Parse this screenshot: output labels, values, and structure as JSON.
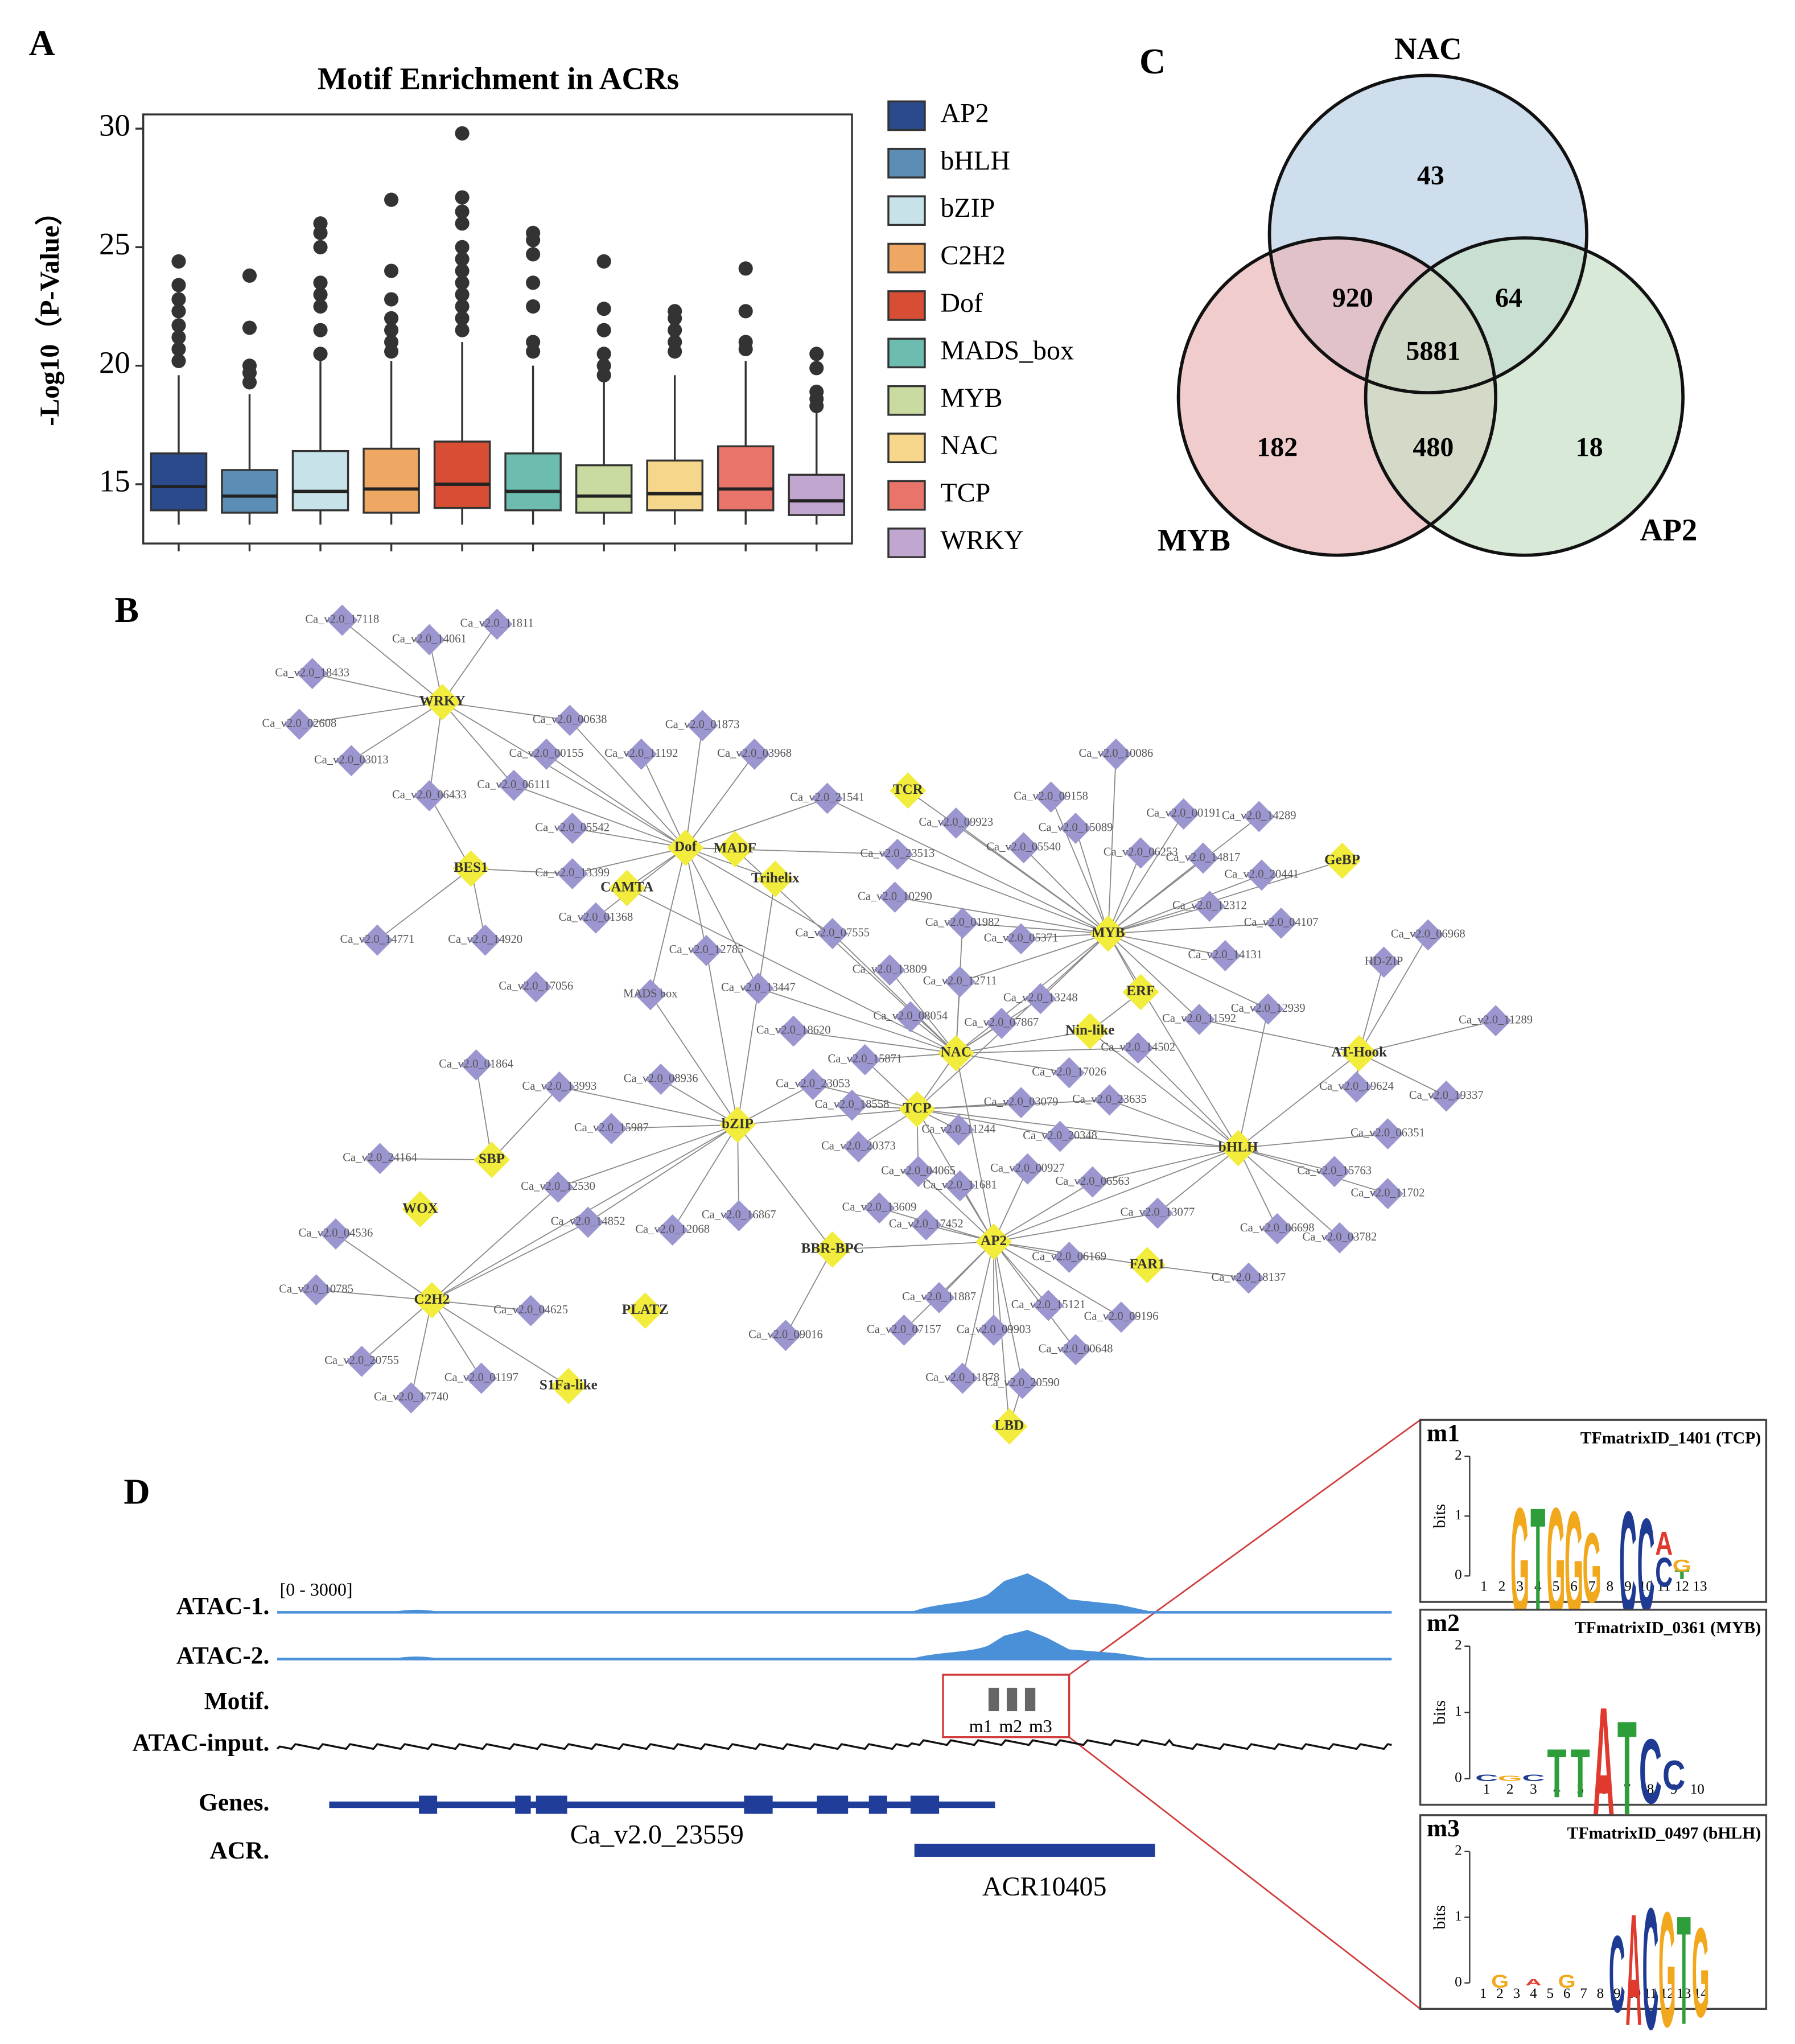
{
  "panel_labels": [
    "A",
    "B",
    "C",
    "D"
  ],
  "chart_data": [
    {
      "type": "box",
      "title": "Motif Enrichment in ACRs",
      "y_label": "-Log10（P-Value）",
      "ylim": [
        12.5,
        30.6
      ],
      "yticks": [
        15,
        20,
        25,
        30
      ],
      "boxes": [
        {
          "name": "AP2",
          "color": "#2b4a8c",
          "whisker_low": 13.3,
          "q1": 13.9,
          "median": 14.9,
          "q3": 16.3,
          "whisker_high": 19.6,
          "outliers": [
            20.2,
            20.7,
            21.2,
            21.7,
            22.3,
            22.8,
            23.4,
            24.4
          ]
        },
        {
          "name": "bHLH",
          "color": "#5b8db5",
          "whisker_low": 13.3,
          "q1": 13.8,
          "median": 14.5,
          "q3": 15.6,
          "whisker_high": 18.8,
          "outliers": [
            19.3,
            19.7,
            20.0,
            21.6,
            23.8
          ]
        },
        {
          "name": "bZIP",
          "color": "#c8e2ea",
          "whisker_low": 13.3,
          "q1": 13.9,
          "median": 14.7,
          "q3": 16.4,
          "whisker_high": 20.2,
          "outliers": [
            20.5,
            21.5,
            22.5,
            23.0,
            23.5,
            25.0,
            25.6,
            26.0
          ]
        },
        {
          "name": "C2H2",
          "color": "#eea863",
          "whisker_low": 13.3,
          "q1": 13.8,
          "median": 14.8,
          "q3": 16.5,
          "whisker_high": 20.2,
          "outliers": [
            20.6,
            21.0,
            21.5,
            22.0,
            22.8,
            24.0,
            27.0
          ]
        },
        {
          "name": "Dof",
          "color": "#d84e35",
          "whisker_low": 13.3,
          "q1": 14.0,
          "median": 15.0,
          "q3": 16.8,
          "whisker_high": 21.0,
          "outliers": [
            21.5,
            22.0,
            22.5,
            23.0,
            23.5,
            24.0,
            24.5,
            25.0,
            26.0,
            26.5,
            27.1,
            29.8
          ]
        },
        {
          "name": "MADS_box",
          "color": "#6cbdb0",
          "whisker_low": 13.3,
          "q1": 13.9,
          "median": 14.7,
          "q3": 16.3,
          "whisker_high": 20.0,
          "outliers": [
            20.6,
            21.0,
            22.5,
            23.5,
            24.7,
            25.3,
            25.6
          ]
        },
        {
          "name": "MYB",
          "color": "#c9dba0",
          "whisker_low": 13.3,
          "q1": 13.8,
          "median": 14.5,
          "q3": 15.8,
          "whisker_high": 19.3,
          "outliers": [
            19.6,
            20.0,
            20.5,
            21.5,
            22.4,
            24.4
          ]
        },
        {
          "name": "NAC",
          "color": "#f5d68a",
          "whisker_low": 13.3,
          "q1": 13.9,
          "median": 14.6,
          "q3": 16.0,
          "whisker_high": 19.6,
          "outliers": [
            20.6,
            21.0,
            21.5,
            22.0,
            22.3
          ]
        },
        {
          "name": "TCP",
          "color": "#e8746a",
          "whisker_low": 13.3,
          "q1": 13.9,
          "median": 14.8,
          "q3": 16.6,
          "whisker_high": 20.2,
          "outliers": [
            20.7,
            21.0,
            22.3,
            24.1
          ]
        },
        {
          "name": "WRKY",
          "color": "#c1a7cf",
          "whisker_low": 13.3,
          "q1": 13.7,
          "median": 14.3,
          "q3": 15.4,
          "whisker_high": 18.0,
          "outliers": [
            18.3,
            18.6,
            18.9,
            19.9,
            20.5
          ]
        }
      ]
    },
    {
      "type": "venn",
      "sets": [
        {
          "name": "NAC",
          "color": "#b9d0e5"
        },
        {
          "name": "MYB",
          "color": "#eab6b8"
        },
        {
          "name": "AP2",
          "color": "#c8e0c6"
        }
      ],
      "regions": [
        {
          "sets": [
            "NAC"
          ],
          "value": 43
        },
        {
          "sets": [
            "NAC",
            "MYB"
          ],
          "value": 920
        },
        {
          "sets": [
            "NAC",
            "AP2"
          ],
          "value": 64
        },
        {
          "sets": [
            "NAC",
            "MYB",
            "AP2"
          ],
          "value": 5881
        },
        {
          "sets": [
            "MYB"
          ],
          "value": 182
        },
        {
          "sets": [
            "MYB",
            "AP2"
          ],
          "value": 480
        },
        {
          "sets": [
            "AP2"
          ],
          "value": 18
        }
      ]
    }
  ],
  "network": {
    "tf_color": "#f2ec3c",
    "target_color": "#9b96cf",
    "hubs": [
      "WRKY",
      "Dof",
      "MADF",
      "TCR",
      "BES1",
      "CAMTA",
      "Trihelix",
      "MYB",
      "GeBP",
      "ERF",
      "Nin-like",
      "AT-Hook",
      "NAC",
      "TCP",
      "bZIP",
      "bHLH",
      "SBP",
      "WOX",
      "C2H2",
      "PLATZ",
      "S1Fa-like",
      "BBR-BPC",
      "AP2",
      "FAR1",
      "LBD"
    ],
    "targets": [
      "Ca_v2.0_17118",
      "Ca_v2.0_11811",
      "Ca_v2.0_14061",
      "Ca_v2.0_18433",
      "Ca_v2.0_02608",
      "Ca_v2.0_03013",
      "Ca_v2.0_06433",
      "Ca_v2.0_06111",
      "Ca_v2.0_00638",
      "Ca_v2.0_00155",
      "Ca_v2.0_11192",
      "Ca_v2.0_01873",
      "Ca_v2.0_03968",
      "Ca_v2.0_05542",
      "Ca_v2.0_13399",
      "Ca_v2.0_01368",
      "Ca_v2.0_14771",
      "Ca_v2.0_14920",
      "Ca_v2.0_21541",
      "Ca_v2.0_09923",
      "Ca_v2.0_23513",
      "Ca_v2.0_10086",
      "Ca_v2.0_09158",
      "Ca_v2.0_15089",
      "Ca_v2.0_05540",
      "Ca_v2.0_00191",
      "Ca_v2.0_14289",
      "Ca_v2.0_06253",
      "Ca_v2.0_14817",
      "Ca_v2.0_20441",
      "Ca_v2.0_10290",
      "Ca_v2.0_01982",
      "Ca_v2.0_05371",
      "Ca_v2.0_07555",
      "Ca_v2.0_12312",
      "Ca_v2.0_04107",
      "Ca_v2.0_12785",
      "Ca_v2.0_17056",
      "Ca_v2.0_13447",
      "Ca_v2.0_13809",
      "Ca_v2.0_12711",
      "Ca_v2.0_14131",
      "Ca_v2.0_06968",
      "Ca_v2.0_13248",
      "Ca_v2.0_18620",
      "Ca_v2.0_08054",
      "Ca_v2.0_07867",
      "Ca_v2.0_11592",
      "Ca_v2.0_12939",
      "Ca_v2.0_11289",
      "Ca_v2.0_01864",
      "Ca_v2.0_13993",
      "Ca_v2.0_08936",
      "Ca_v2.0_15871",
      "Ca_v2.0_14502",
      "Ca_v2.0_17026",
      "Ca_v2.0_23053",
      "Ca_v2.0_18558",
      "Ca_v2.0_03079",
      "Ca_v2.0_23635",
      "Ca_v2.0_19624",
      "Ca_v2.0_19337",
      "Ca_v2.0_15987",
      "Ca_v2.0_11244",
      "Ca_v2.0_20348",
      "Ca_v2.0_06351",
      "Ca_v2.0_24164",
      "Ca_v2.0_20373",
      "Ca_v2.0_04065",
      "Ca_v2.0_00927",
      "Ca_v2.0_11681",
      "Ca_v2.0_06563",
      "Ca_v2.0_15763",
      "Ca_v2.0_11702",
      "Ca_v2.0_12530",
      "Ca_v2.0_13609",
      "Ca_v2.0_13077",
      "Ca_v2.0_04536",
      "Ca_v2.0_14852",
      "Ca_v2.0_16867",
      "Ca_v2.0_12068",
      "Ca_v2.0_17452",
      "Ca_v2.0_06698",
      "Ca_v2.0_03782",
      "Ca_v2.0_06169",
      "Ca_v2.0_18137",
      "Ca_v2.0_10785",
      "Ca_v2.0_04625",
      "Ca_v2.0_11887",
      "Ca_v2.0_15121",
      "Ca_v2.0_09196",
      "Ca_v2.0_09016",
      "Ca_v2.0_07157",
      "Ca_v2.0_09903",
      "Ca_v2.0_00648",
      "Ca_v2.0_20755",
      "Ca_v2.0_01197",
      "Ca_v2.0_17740",
      "Ca_v2.0_11878",
      "Ca_v2.0_20590",
      "MADS box",
      "HD-ZIP"
    ]
  },
  "tracks": {
    "range_label": "[0 - 3000]",
    "track_labels": [
      "ATAC-1.",
      "ATAC-2.",
      "Motif.",
      "ATAC-input.",
      "Genes.",
      "ACR."
    ],
    "gene": "Ca_v2.0_23559",
    "acr": "ACR10405",
    "motif_labels": [
      "m1",
      "m2",
      "m3"
    ],
    "signal_color": "#4a90d9",
    "gene_color": "#1f3d99"
  },
  "motif_logos": {
    "letter_colors": {
      "A": "#e03a2e",
      "C": "#1f3a93",
      "G": "#f2a81d",
      "T": "#2e9e3a"
    },
    "logos": [
      {
        "id": "m1",
        "title": "TFmatrixID_1401 (TCP)",
        "y_label": "bits",
        "ylim": [
          0,
          2
        ],
        "yticks": [
          0,
          1,
          2
        ],
        "xticks": [
          1,
          2,
          3,
          4,
          5,
          6,
          7,
          8,
          9,
          10,
          11,
          12,
          13
        ],
        "columns": [
          {
            "position": 3,
            "stack": [
              {
                "letter": "G",
                "bits": 1.9
              }
            ]
          },
          {
            "position": 4,
            "stack": [
              {
                "letter": "T",
                "bits": 1.9
              }
            ]
          },
          {
            "position": 5,
            "stack": [
              {
                "letter": "G",
                "bits": 1.9
              }
            ]
          },
          {
            "position": 6,
            "stack": [
              {
                "letter": "G",
                "bits": 1.8
              }
            ]
          },
          {
            "position": 7,
            "stack": [
              {
                "letter": "G",
                "bits": 1.2
              }
            ]
          },
          {
            "position": 9,
            "stack": [
              {
                "letter": "C",
                "bits": 1.8
              }
            ]
          },
          {
            "position": 10,
            "stack": [
              {
                "letter": "C",
                "bits": 1.6
              }
            ]
          },
          {
            "position": 11,
            "stack": [
              {
                "letter": "C",
                "bits": 0.5
              },
              {
                "letter": "A",
                "bits": 0.4
              }
            ]
          },
          {
            "position": 12,
            "stack": [
              {
                "letter": "T",
                "bits": 0.15
              },
              {
                "letter": "G",
                "bits": 0.2
              }
            ]
          }
        ]
      },
      {
        "id": "m2",
        "title": "TFmatrixID_0361 (MYB)",
        "y_label": "bits",
        "ylim": [
          0,
          2
        ],
        "yticks": [
          0,
          1,
          2
        ],
        "xticks": [
          1,
          2,
          3,
          4,
          5,
          6,
          7,
          8,
          9,
          10
        ],
        "columns": [
          {
            "position": 1,
            "stack": [
              {
                "letter": "C",
                "bits": 0.1
              }
            ]
          },
          {
            "position": 2,
            "stack": [
              {
                "letter": "G",
                "bits": 0.08
              }
            ]
          },
          {
            "position": 3,
            "stack": [
              {
                "letter": "C",
                "bits": 0.1
              }
            ]
          },
          {
            "position": 4,
            "stack": [
              {
                "letter": "T",
                "bits": 0.75
              }
            ]
          },
          {
            "position": 5,
            "stack": [
              {
                "letter": "T",
                "bits": 0.75
              }
            ]
          },
          {
            "position": 6,
            "stack": [
              {
                "letter": "A",
                "bits": 1.8
              }
            ]
          },
          {
            "position": 7,
            "stack": [
              {
                "letter": "T",
                "bits": 1.45
              }
            ]
          },
          {
            "position": 8,
            "stack": [
              {
                "letter": "C",
                "bits": 1.0
              }
            ]
          },
          {
            "position": 9,
            "stack": [
              {
                "letter": "C",
                "bits": 0.45
              }
            ]
          }
        ]
      },
      {
        "id": "m3",
        "title": "TFmatrixID_0497 (bHLH)",
        "y_label": "bits",
        "ylim": [
          0,
          2
        ],
        "yticks": [
          0,
          1,
          2
        ],
        "xticks": [
          1,
          2,
          3,
          4,
          5,
          6,
          7,
          8,
          9,
          10,
          11,
          12,
          13,
          14
        ],
        "columns": [
          {
            "position": 2,
            "stack": [
              {
                "letter": "G",
                "bits": 0.2
              }
            ]
          },
          {
            "position": 4,
            "stack": [
              {
                "letter": "A",
                "bits": 0.1
              }
            ]
          },
          {
            "position": 6,
            "stack": [
              {
                "letter": "G",
                "bits": 0.2
              }
            ]
          },
          {
            "position": 9,
            "stack": [
              {
                "letter": "C",
                "bits": 1.2
              }
            ]
          },
          {
            "position": 10,
            "stack": [
              {
                "letter": "A",
                "bits": 1.75
              }
            ]
          },
          {
            "position": 11,
            "stack": [
              {
                "letter": "C",
                "bits": 1.9
              }
            ]
          },
          {
            "position": 12,
            "stack": [
              {
                "letter": "G",
                "bits": 1.8
              }
            ]
          },
          {
            "position": 13,
            "stack": [
              {
                "letter": "T",
                "bits": 1.7
              }
            ]
          },
          {
            "position": 14,
            "stack": [
              {
                "letter": "G",
                "bits": 1.4
              }
            ]
          }
        ]
      }
    ]
  }
}
